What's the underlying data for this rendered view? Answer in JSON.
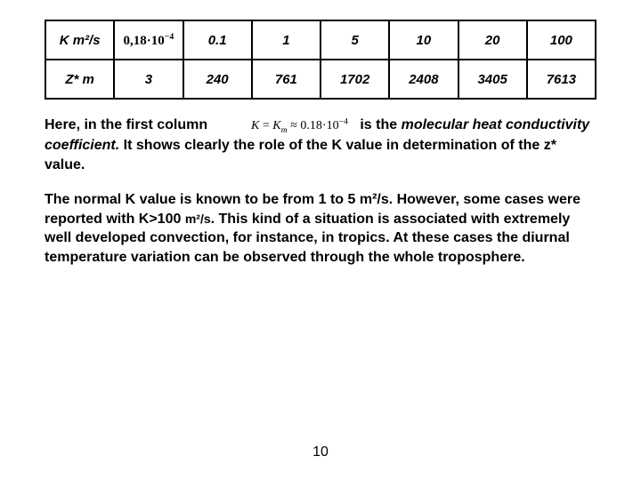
{
  "table": {
    "type": "table",
    "border_color": "#000000",
    "background_color": "#ffffff",
    "text_color": "#000000",
    "font_style": "bold italic",
    "columns": 7,
    "row1_label": "K m²/s",
    "row1_cell1_formula": "0,18·10⁻⁴",
    "row1": [
      "0.1",
      "1",
      "5",
      "10",
      "20",
      "100"
    ],
    "row2_label": "Z* m",
    "row2": [
      "3",
      "240",
      "761",
      "1702",
      "2408",
      "3405",
      "7613"
    ]
  },
  "paragraph1": {
    "part1": "Here, in the first column",
    "formula": "K = Kₘ ≈ 0.18·10⁻⁴",
    "part2": "is the ",
    "italic": "molecular heat conductivity coefficient.",
    "part3": " It shows  clearly the role of the K value in determination of the z* value."
  },
  "paragraph2": {
    "text_a": "The normal K value is known to be from 1 to 5 m²/s. However, some cases were reported with K>100 ",
    "unit": "m²/s",
    "text_b": ". This kind of a situation  is associated with extremely  well developed convection, for instance, in tropics. At these cases the diurnal temperature variation can be observed through the whole troposphere."
  },
  "page_number": "10"
}
